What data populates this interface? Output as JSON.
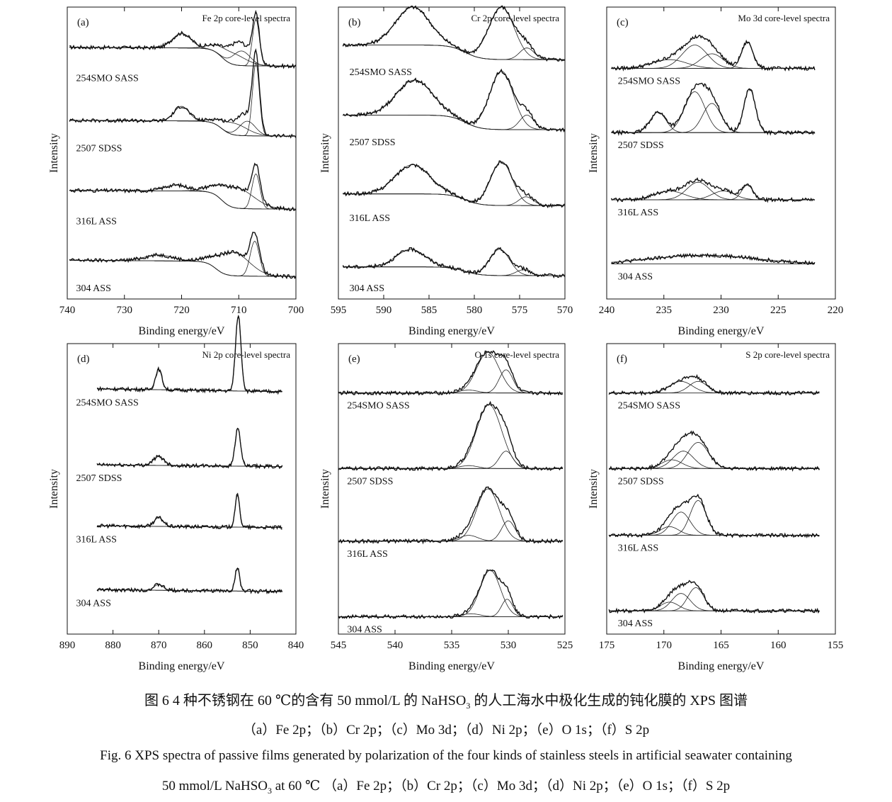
{
  "figure": {
    "y_label": "Intensity",
    "x_label": "Binding energy/eV"
  },
  "chart_data": [
    {
      "id": "a",
      "type": "line",
      "panel_label": "(a)",
      "title": "Fe 2p core-level spectra",
      "xlabel": "Binding energy/eV",
      "ylabel": "Intensity",
      "xlim": [
        740,
        700
      ],
      "xticks": [
        740,
        730,
        720,
        710,
        700
      ],
      "series": [
        {
          "name": "254SMO SASS",
          "base": 0.8,
          "peaks": [
            [
              720,
              0.05,
              1.6
            ],
            [
              711.5,
              0.04,
              2.5
            ],
            [
              709.5,
              0.05,
              1.5
            ],
            [
              707,
              0.16,
              0.6
            ]
          ],
          "step": [
            [
              713,
              0.06
            ]
          ],
          "slope": 0.0012
        },
        {
          "name": "2507 SDSS",
          "base": 0.56,
          "peaks": [
            [
              720,
              0.05,
              1.3
            ],
            [
              711,
              0.04,
              2.4
            ],
            [
              708.5,
              0.05,
              1.4
            ],
            [
              707,
              0.25,
              0.6
            ]
          ],
          "step": [
            [
              713,
              0.05
            ]
          ],
          "slope": 0.001
        },
        {
          "name": "316L ASS",
          "base": 0.31,
          "peaks": [
            [
              721,
              0.02,
              2
            ],
            [
              710.5,
              0.07,
              3
            ],
            [
              707,
              0.12,
              0.7
            ]
          ],
          "step": [
            [
              713,
              0.06
            ]
          ],
          "slope": 0.001
        },
        {
          "name": "304 ASS",
          "base": 0.08,
          "peaks": [
            [
              724,
              0.02,
              2.5
            ],
            [
              711,
              0.08,
              2.8
            ],
            [
              707.2,
              0.12,
              0.8
            ]
          ],
          "step": [
            [
              714,
              0.05
            ]
          ],
          "slope": 0.0015
        }
      ]
    },
    {
      "id": "b",
      "type": "line",
      "panel_label": "(b)",
      "title": "Cr 2p core-level spectra",
      "xlabel": "Binding energy/eV",
      "ylabel": "Intensity",
      "xlim": [
        595,
        570
      ],
      "xticks": [
        595,
        590,
        585,
        580,
        575,
        570
      ],
      "series": [
        {
          "name": "254SMO SASS",
          "base": 0.82,
          "peaks": [
            [
              586.8,
              0.13,
              1.9
            ],
            [
              577,
              0.18,
              1.4
            ],
            [
              574.2,
              0.04,
              0.8
            ]
          ],
          "step": [
            [
              581,
              0.05
            ]
          ],
          "slope": 0.0
        },
        {
          "name": "2507 SDSS",
          "base": 0.58,
          "peaks": [
            [
              586.6,
              0.12,
              2.0
            ],
            [
              577,
              0.2,
              1.3
            ],
            [
              574.2,
              0.05,
              0.8
            ]
          ],
          "step": [
            [
              581,
              0.05
            ]
          ],
          "slope": 0.0
        },
        {
          "name": "316L ASS",
          "base": 0.32,
          "peaks": [
            [
              586.8,
              0.1,
              1.9
            ],
            [
              577,
              0.15,
              1.2
            ],
            [
              574.3,
              0.03,
              0.8
            ]
          ],
          "step": [
            [
              581,
              0.04
            ]
          ],
          "slope": 0.0
        },
        {
          "name": "304 ASS",
          "base": 0.08,
          "peaks": [
            [
              587,
              0.06,
              1.6
            ],
            [
              577.2,
              0.09,
              1.1
            ],
            [
              574.6,
              0.02,
              0.8
            ]
          ],
          "step": [
            [
              581,
              0.03
            ]
          ],
          "slope": 0.0
        }
      ]
    },
    {
      "id": "c",
      "type": "line",
      "panel_label": "(c)",
      "title": "Mo 3d core-level spectra",
      "xlabel": "Binding energy/eV",
      "ylabel": "Intensity",
      "xlim": [
        240,
        220
      ],
      "xticks": [
        240,
        235,
        230,
        225,
        220
      ],
      "series": [
        {
          "name": "254SMO SASS",
          "base": 0.79,
          "peaks": [
            [
              234.5,
              0.03,
              1.5
            ],
            [
              232.3,
              0.08,
              1.1
            ],
            [
              230.8,
              0.05,
              1.0
            ],
            [
              227.7,
              0.09,
              0.5
            ]
          ],
          "step": [],
          "slope": 0.0
        },
        {
          "name": "2507 SDSS",
          "base": 0.57,
          "peaks": [
            [
              235.5,
              0.07,
              0.7
            ],
            [
              232.3,
              0.14,
              0.9
            ],
            [
              230.8,
              0.1,
              0.8
            ],
            [
              227.5,
              0.15,
              0.5
            ]
          ],
          "step": [],
          "slope": 0.0
        },
        {
          "name": "316L ASS",
          "base": 0.34,
          "peaks": [
            [
              234.5,
              0.03,
              1.3
            ],
            [
              232,
              0.06,
              1.0
            ],
            [
              229.8,
              0.03,
              1.0
            ],
            [
              227.7,
              0.05,
              0.5
            ]
          ],
          "step": [],
          "slope": 0.0
        },
        {
          "name": "304 ASS",
          "base": 0.12,
          "peaks": [
            [
              231.5,
              0.03,
              4.5
            ]
          ],
          "step": [],
          "slope": 0.0
        }
      ]
    },
    {
      "id": "d",
      "type": "line",
      "panel_label": "(d)",
      "title": "Ni 2p core-level spectra",
      "xlabel": "Binding energy/eV",
      "ylabel": "Intensity",
      "xlim": [
        890,
        840
      ],
      "xticks": [
        890,
        880,
        870,
        860,
        850,
        840
      ],
      "series": [
        {
          "name": "254SMO SASS",
          "base": 0.84,
          "peaks": [
            [
              870,
              0.07,
              0.7
            ],
            [
              852.6,
              0.26,
              0.6
            ]
          ],
          "step": [],
          "slope": 0.0025
        },
        {
          "name": "2507 SDSS",
          "base": 0.58,
          "peaks": [
            [
              870,
              0.03,
              1.2
            ],
            [
              852.7,
              0.13,
              0.6
            ]
          ],
          "step": [],
          "slope": 0.0015
        },
        {
          "name": "316L ASS",
          "base": 0.37,
          "peaks": [
            [
              870,
              0.03,
              1.0
            ],
            [
              852.8,
              0.11,
              0.5
            ]
          ],
          "step": [],
          "slope": 0.0015
        },
        {
          "name": "304 ASS",
          "base": 0.15,
          "peaks": [
            [
              870,
              0.02,
              1.0
            ],
            [
              852.8,
              0.08,
              0.5
            ]
          ],
          "step": [],
          "slope": 0.0015
        }
      ]
    },
    {
      "id": "e",
      "type": "line",
      "panel_label": "(e)",
      "title": "O 1s core-level spectra",
      "xlabel": "Binding energy/eV",
      "ylabel": "Intensity",
      "xlim": [
        545,
        525
      ],
      "xticks": [
        545,
        540,
        535,
        530,
        525
      ],
      "series": [
        {
          "name": "254SMO SASS",
          "base": 0.83,
          "peaks": [
            [
              531.8,
              0.14,
              1.0
            ],
            [
              530.2,
              0.08,
              0.6
            ],
            [
              533.5,
              0.01,
              0.8
            ]
          ],
          "step": [],
          "slope": 0.0
        },
        {
          "name": "2507 SDSS",
          "base": 0.57,
          "peaks": [
            [
              531.7,
              0.22,
              1.1
            ],
            [
              530.2,
              0.06,
              0.6
            ],
            [
              533.5,
              0.01,
              0.8
            ]
          ],
          "step": [],
          "slope": 0.0
        },
        {
          "name": "316L ASS",
          "base": 0.32,
          "peaks": [
            [
              531.8,
              0.18,
              1.0
            ],
            [
              530.0,
              0.07,
              0.6
            ],
            [
              533.5,
              0.02,
              0.8
            ]
          ],
          "step": [],
          "slope": 0.0
        },
        {
          "name": "304 ASS",
          "base": 0.06,
          "peaks": [
            [
              531.6,
              0.16,
              0.9
            ],
            [
              530.1,
              0.06,
              0.5
            ],
            [
              533.3,
              0.01,
              0.8
            ]
          ],
          "step": [],
          "slope": 0.0
        }
      ]
    },
    {
      "id": "f",
      "type": "line",
      "panel_label": "(f)",
      "title": "S 2p core-level spectra",
      "xlabel": "Binding energy/eV",
      "ylabel": "Intensity",
      "xlim": [
        175,
        155
      ],
      "xticks": [
        175,
        170,
        165,
        160,
        155
      ],
      "series": [
        {
          "name": "254SMO SASS",
          "base": 0.83,
          "peaks": [
            [
              168.5,
              0.04,
              1.0
            ],
            [
              167,
              0.04,
              0.8
            ]
          ],
          "step": [],
          "slope": 0.0
        },
        {
          "name": "2507 SDSS",
          "base": 0.57,
          "peaks": [
            [
              169.3,
              0.03,
              0.9
            ],
            [
              168.3,
              0.06,
              0.9
            ],
            [
              167,
              0.09,
              0.9
            ]
          ],
          "step": [],
          "slope": 0.0
        },
        {
          "name": "316L ASS",
          "base": 0.34,
          "peaks": [
            [
              169.5,
              0.03,
              0.8
            ],
            [
              168.5,
              0.08,
              0.8
            ],
            [
              167,
              0.12,
              0.7
            ]
          ],
          "step": [],
          "slope": 0.0
        },
        {
          "name": "304 ASS",
          "base": 0.08,
          "peaks": [
            [
              169.5,
              0.03,
              0.8
            ],
            [
              168.5,
              0.06,
              0.8
            ],
            [
              167.2,
              0.08,
              0.7
            ]
          ],
          "step": [],
          "slope": 0.0
        }
      ]
    }
  ],
  "captions": {
    "zh_title_pre": "图 6   4 种不锈钢在 60 ℃的含有 50 mmol/L 的 NaHSO",
    "zh_title_sub": "3",
    "zh_title_post": " 的人工海水中极化生成的钝化膜的 XPS 图谱",
    "zh_parts": "（a）Fe 2p；（b）Cr 2p；（c）Mo 3d；（d）Ni 2p；（e）O 1s；（f）S 2p",
    "en_line1": "Fig. 6   XPS spectra of passive films generated by polarization of the four kinds of stainless steels in artificial seawater containing",
    "en_line2_pre": "50 mmol/L NaHSO",
    "en_line2_sub": "3",
    "en_line2_post": " at 60 ℃   （a）Fe 2p；（b）Cr 2p；（c）Mo 3d；（d）Ni 2p；（e）O 1s；（f）S 2p"
  }
}
